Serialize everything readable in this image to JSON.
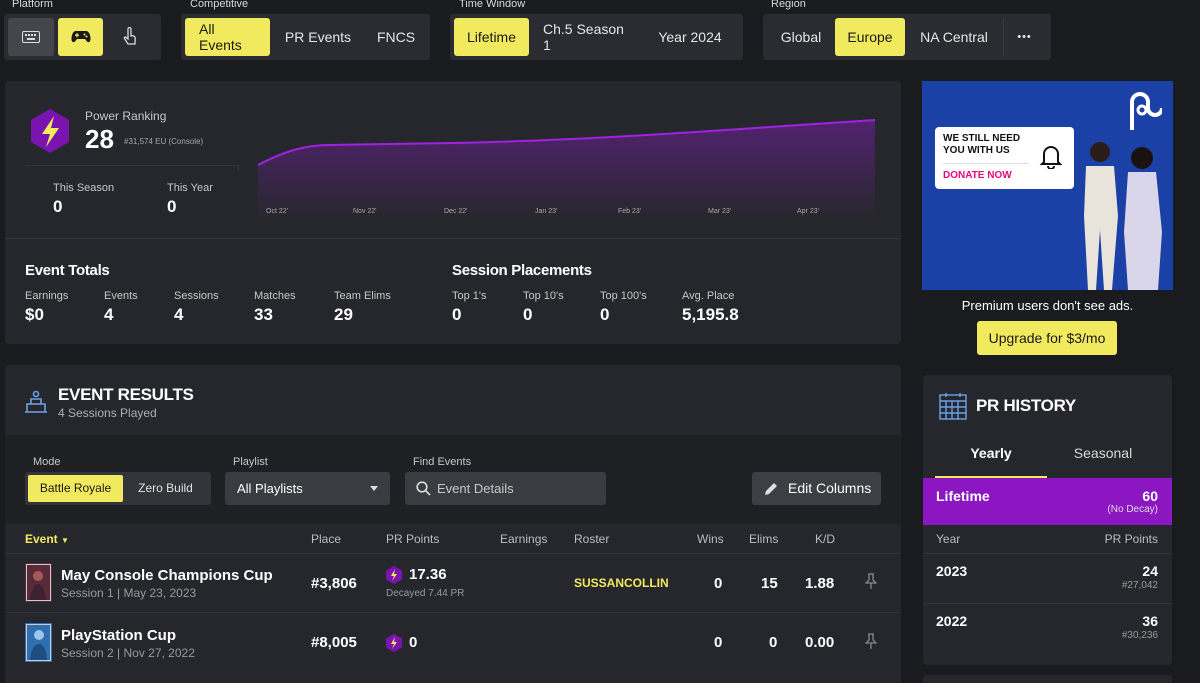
{
  "filters": {
    "platform": {
      "label": "Platform",
      "icons": [
        "keyboard-icon",
        "gamepad-icon",
        "touch-icon"
      ]
    },
    "competitive": {
      "label": "Competitive",
      "options": [
        "All Events",
        "PR Events",
        "FNCS"
      ]
    },
    "time_window": {
      "label": "Time Window",
      "options": [
        "Lifetime",
        "Ch.5 Season 1",
        "Year 2024"
      ]
    },
    "region": {
      "label": "Region",
      "options": [
        "Global",
        "Europe",
        "NA Central"
      ],
      "more": "•••"
    }
  },
  "power_ranking": {
    "label": "Power Ranking",
    "rank": "28",
    "detail": "#31,574 EU (Console)",
    "this_season_label": "This Season",
    "this_season": "0",
    "this_year_label": "This Year",
    "this_year": "0",
    "chart_months": [
      "Oct 22'",
      "Nov 22'",
      "Dec 22'",
      "Jan 23'",
      "Feb 23'",
      "Mar 23'",
      "Apr 23'"
    ]
  },
  "event_totals": {
    "title": "Event Totals",
    "stats": [
      {
        "label": "Earnings",
        "value": "$0"
      },
      {
        "label": "Events",
        "value": "4"
      },
      {
        "label": "Sessions",
        "value": "4"
      },
      {
        "label": "Matches",
        "value": "33"
      },
      {
        "label": "Team Elims",
        "value": "29"
      }
    ]
  },
  "session_placements": {
    "title": "Session Placements",
    "stats": [
      {
        "label": "Top 1's",
        "value": "0"
      },
      {
        "label": "Top 10's",
        "value": "0"
      },
      {
        "label": "Top 100's",
        "value": "0"
      },
      {
        "label": "Avg. Place",
        "value": "5,195.8"
      }
    ]
  },
  "ad": {
    "headline": "WE STILL NEED YOU WITH US",
    "cta": "DONATE NOW",
    "premium_note": "Premium users don't see ads.",
    "upgrade": "Upgrade for $3/mo"
  },
  "event_results": {
    "title": "EVENT RESULTS",
    "subtitle": "4 Sessions Played",
    "mode_label": "Mode",
    "modes": [
      "Battle Royale",
      "Zero Build"
    ],
    "playlist_label": "Playlist",
    "playlist_value": "All Playlists",
    "find_label": "Find Events",
    "find_placeholder": "Event Details",
    "edit_columns": "Edit Columns",
    "columns": [
      "Event",
      "Place",
      "PR Points",
      "Earnings",
      "Roster",
      "Wins",
      "Elims",
      "K/D"
    ],
    "rows": [
      {
        "name": "May Console Champions Cup",
        "session": "Session 1 | May 23, 2023",
        "place": "#3,806",
        "points": "17.36",
        "decay": "Decayed 7.44 PR",
        "roster": "SUSSANCOLLIN",
        "wins": "0",
        "elims": "15",
        "kd": "1.88"
      },
      {
        "name": "PlayStation Cup",
        "session": "Session 2 | Nov 27, 2022",
        "place": "#8,005",
        "points": "0",
        "decay": "",
        "roster": "",
        "wins": "0",
        "elims": "0",
        "kd": "0.00"
      }
    ]
  },
  "pr_history": {
    "title": "PR HISTORY",
    "tabs": [
      "Yearly",
      "Seasonal"
    ],
    "lifetime_label": "Lifetime",
    "lifetime_value": "60",
    "lifetime_note": "(No Decay)",
    "col_year": "Year",
    "col_points": "PR Points",
    "rows": [
      {
        "year": "2023",
        "points": "24",
        "rank": "#27,042"
      },
      {
        "year": "2022",
        "points": "36",
        "rank": "#30,236"
      }
    ]
  },
  "colors": {
    "accent": "#f2ea5e",
    "purple": "#8c17c2",
    "panel": "#26272c"
  }
}
